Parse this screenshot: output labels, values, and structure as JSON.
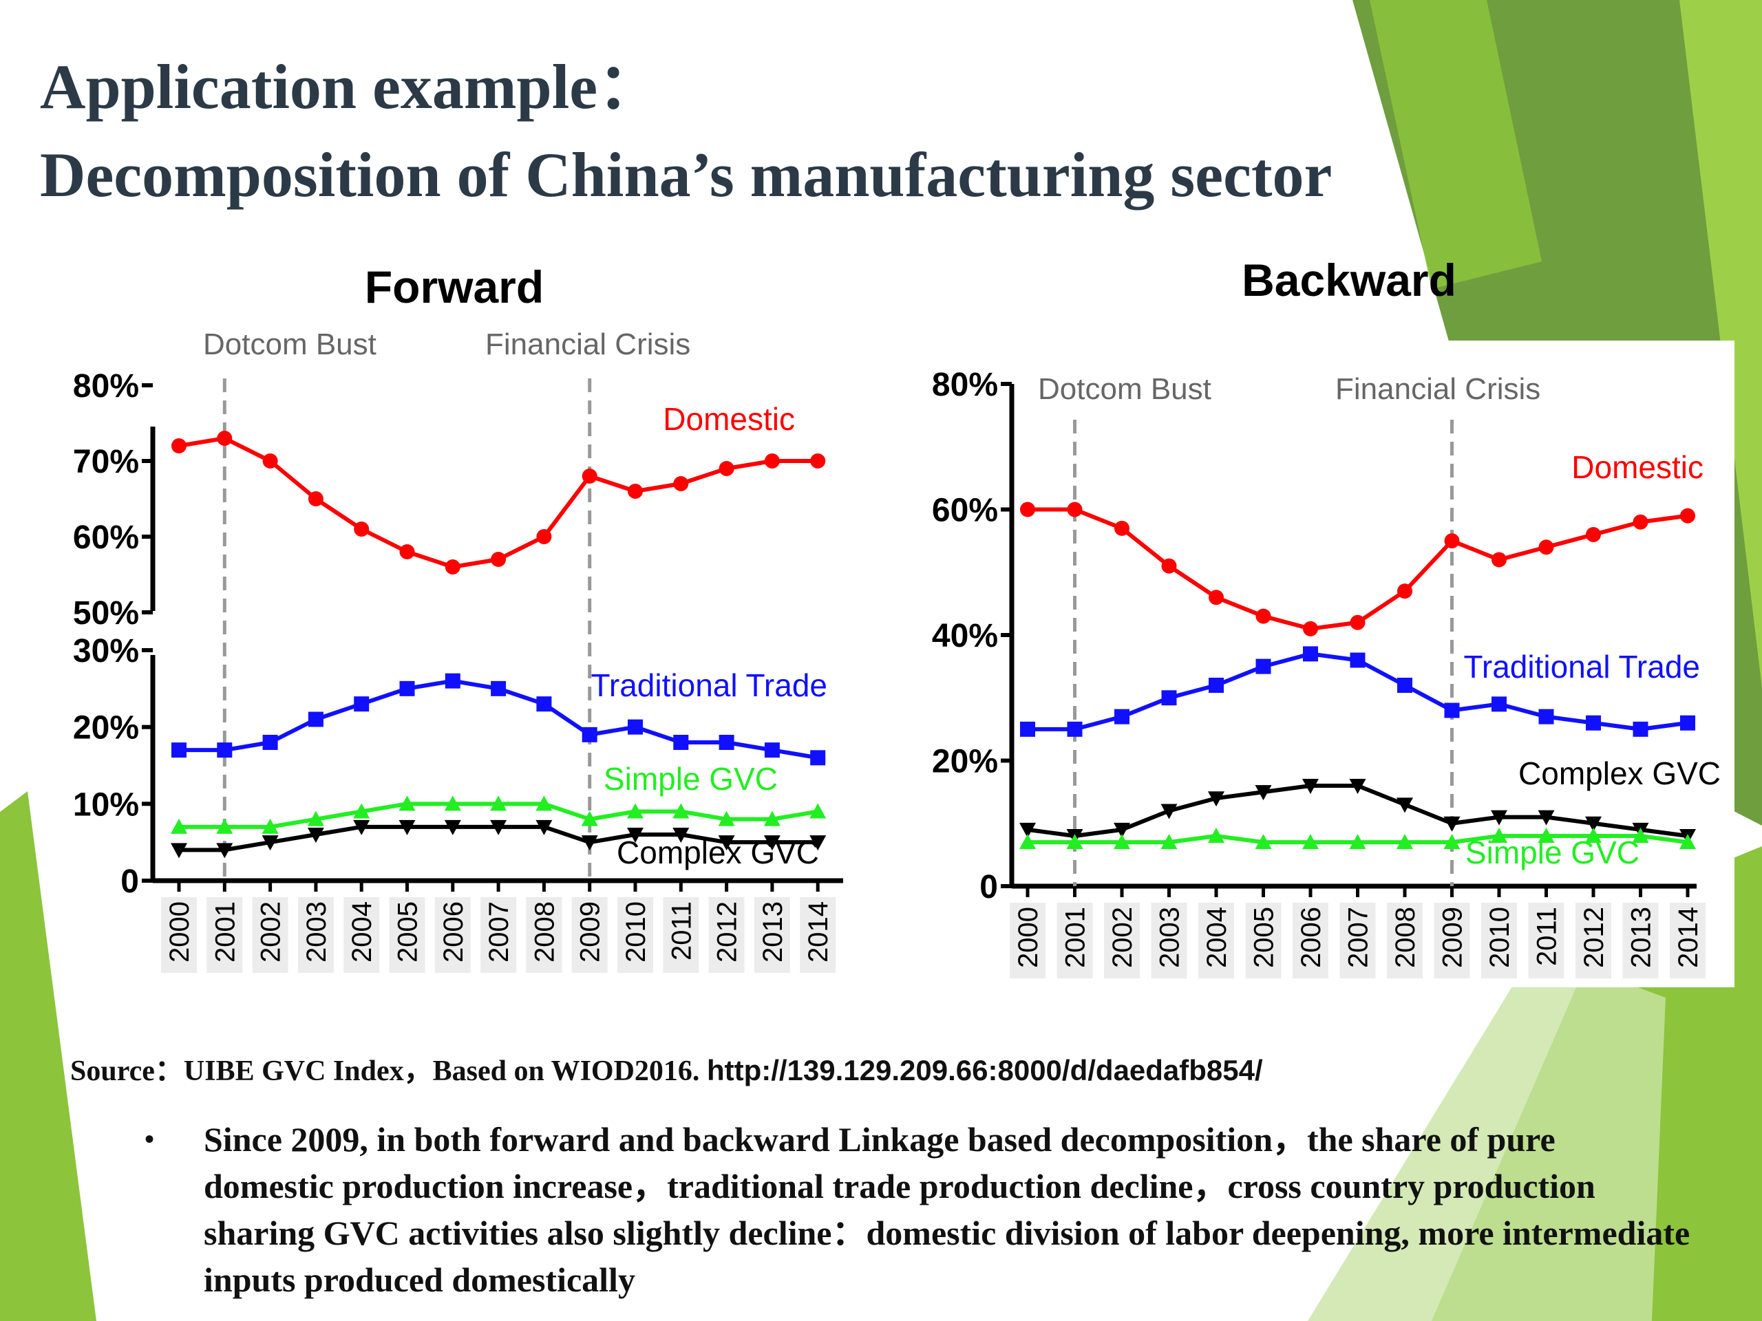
{
  "slide": {
    "title_line1": "Application example：",
    "title_line2": "Decomposition of China’s manufacturing sector",
    "source_label": "Source：",
    "source_text": "UIBE GVC Index，Based on WIOD2016.",
    "source_url": "http://139.129.209.66:8000/d/daedafb854/",
    "bullet_symbol": "•",
    "bullet_text": "Since 2009, in both forward and backward Linkage based decomposition，the share of pure domestic production increase，traditional trade production decline，cross country production sharing GVC activities also slightly decline：domestic division of labor deepening, more intermediate inputs produced domestically",
    "colors": {
      "title": "#2b3a46",
      "domestic": "#ff0000",
      "traditional": "#1010ff",
      "simple_gvc": "#22ee22",
      "complex_gvc": "#000000",
      "event_line": "#999999",
      "green_decor": "#8cc43c"
    }
  },
  "chart_data": [
    {
      "type": "line",
      "title": "Forward",
      "x": [
        "2000",
        "2001",
        "2002",
        "2003",
        "2004",
        "2005",
        "2006",
        "2007",
        "2008",
        "2009",
        "2010",
        "2011",
        "2012",
        "2013",
        "2014"
      ],
      "series": [
        {
          "name": "Domestic",
          "marker": "circle",
          "values": [
            72,
            73,
            70,
            65,
            61,
            58,
            56,
            57,
            60,
            68,
            66,
            67,
            69,
            70,
            70
          ]
        },
        {
          "name": "Traditional Trade",
          "marker": "square",
          "values": [
            17,
            17,
            18,
            21,
            23,
            25,
            26,
            25,
            23,
            19,
            20,
            18,
            18,
            17,
            16
          ]
        },
        {
          "name": "Simple GVC",
          "marker": "triangle-up",
          "values": [
            7,
            7,
            7,
            8,
            9,
            10,
            10,
            10,
            10,
            8,
            9,
            9,
            8,
            8,
            9
          ]
        },
        {
          "name": "Complex GVC",
          "marker": "triangle-down",
          "values": [
            4,
            4,
            5,
            6,
            7,
            7,
            7,
            7,
            7,
            5,
            6,
            6,
            5,
            5,
            5
          ]
        }
      ],
      "y_ticks": [
        "80%",
        "70%",
        "60%",
        "50%",
        "30%",
        "20%",
        "10%",
        "0"
      ],
      "y_axis_break": [
        30,
        50
      ],
      "ylim": [
        0,
        80
      ],
      "annotations": [
        {
          "text": "Dotcom Bust",
          "x": "2001"
        },
        {
          "text": "Financial Crisis",
          "x": "2009"
        }
      ],
      "grid": false,
      "legend": "inline-labels"
    },
    {
      "type": "line",
      "title": "Backward",
      "x": [
        "2000",
        "2001",
        "2002",
        "2003",
        "2004",
        "2005",
        "2006",
        "2007",
        "2008",
        "2009",
        "2010",
        "2011",
        "2012",
        "2013",
        "2014"
      ],
      "series": [
        {
          "name": "Domestic",
          "marker": "circle",
          "values": [
            60,
            60,
            57,
            51,
            46,
            43,
            41,
            42,
            47,
            55,
            52,
            54,
            56,
            58,
            59
          ]
        },
        {
          "name": "Traditional Trade",
          "marker": "square",
          "values": [
            25,
            25,
            27,
            30,
            32,
            35,
            37,
            36,
            32,
            28,
            29,
            27,
            26,
            25,
            26
          ]
        },
        {
          "name": "Complex GVC",
          "marker": "triangle-down",
          "values": [
            9,
            8,
            9,
            12,
            14,
            15,
            16,
            16,
            13,
            10,
            11,
            11,
            10,
            9,
            8
          ]
        },
        {
          "name": "Simple GVC",
          "marker": "triangle-up",
          "values": [
            7,
            7,
            7,
            7,
            8,
            7,
            7,
            7,
            7,
            7,
            8,
            8,
            8,
            8,
            7
          ]
        }
      ],
      "y_ticks": [
        "80%",
        "60%",
        "40%",
        "20%",
        "0"
      ],
      "ylim": [
        0,
        80
      ],
      "annotations": [
        {
          "text": "Dotcom Bust",
          "x": "2001"
        },
        {
          "text": "Financial Crisis",
          "x": "2009"
        }
      ],
      "grid": false,
      "legend": "inline-labels"
    }
  ]
}
